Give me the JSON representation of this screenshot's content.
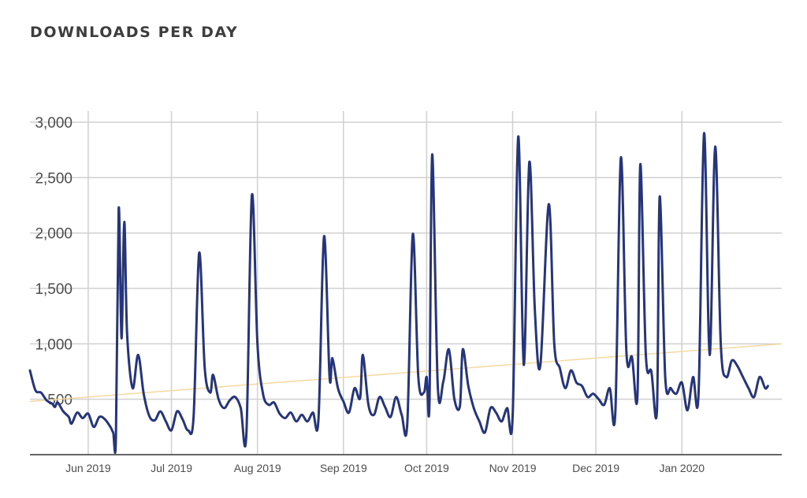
{
  "title": "DOWNLOADS PER DAY",
  "colors": {
    "series": "#26357a",
    "trend": "#f5d9a0",
    "grid": "#d0d0d0",
    "axis": "#333333"
  },
  "chart_data": {
    "type": "line",
    "title": "DOWNLOADS PER DAY",
    "xlabel": "",
    "ylabel": "",
    "ylim": [
      0,
      3100
    ],
    "y_ticks": [
      500,
      1000,
      1500,
      2000,
      2500,
      3000
    ],
    "y_tick_labels": [
      "500",
      "1,000",
      "1,500",
      "2,000",
      "2,500",
      "3,000"
    ],
    "x_range": [
      "2019-05-11",
      "2020-02-06"
    ],
    "x_ticks": [
      "2019-06-01",
      "2019-07-01",
      "2019-08-01",
      "2019-09-01",
      "2019-10-01",
      "2019-11-01",
      "2019-12-01",
      "2020-01-01"
    ],
    "x_tick_labels": [
      "Jun 2019",
      "Jul 2019",
      "Aug 2019",
      "Sep 2019",
      "Oct 2019",
      "Nov 2019",
      "Dec 2019",
      "Jan 2020"
    ],
    "grid": true,
    "series": [
      {
        "values": [
          [
            "2019-05-11",
            760
          ],
          [
            "2019-05-13",
            580
          ],
          [
            "2019-05-15",
            560
          ],
          [
            "2019-05-17",
            490
          ],
          [
            "2019-05-19",
            460
          ],
          [
            "2019-05-20",
            430
          ],
          [
            "2019-05-21",
            470
          ],
          [
            "2019-05-23",
            390
          ],
          [
            "2019-05-25",
            340
          ],
          [
            "2019-05-26",
            280
          ],
          [
            "2019-05-28",
            380
          ],
          [
            "2019-05-30",
            330
          ],
          [
            "2019-06-01",
            370
          ],
          [
            "2019-06-03",
            250
          ],
          [
            "2019-06-05",
            340
          ],
          [
            "2019-06-07",
            320
          ],
          [
            "2019-06-09",
            250
          ],
          [
            "2019-06-10",
            200
          ],
          [
            "2019-06-11",
            160
          ],
          [
            "2019-06-12",
            2220
          ],
          [
            "2019-06-13",
            1050
          ],
          [
            "2019-06-14",
            2100
          ],
          [
            "2019-06-15",
            1100
          ],
          [
            "2019-06-17",
            600
          ],
          [
            "2019-06-19",
            900
          ],
          [
            "2019-06-21",
            550
          ],
          [
            "2019-06-23",
            350
          ],
          [
            "2019-06-25",
            310
          ],
          [
            "2019-06-27",
            390
          ],
          [
            "2019-06-29",
            300
          ],
          [
            "2019-07-01",
            220
          ],
          [
            "2019-07-03",
            390
          ],
          [
            "2019-07-05",
            320
          ],
          [
            "2019-07-07",
            220
          ],
          [
            "2019-07-09",
            350
          ],
          [
            "2019-07-11",
            1820
          ],
          [
            "2019-07-13",
            780
          ],
          [
            "2019-07-15",
            560
          ],
          [
            "2019-07-16",
            720
          ],
          [
            "2019-07-18",
            500
          ],
          [
            "2019-07-20",
            420
          ],
          [
            "2019-07-22",
            490
          ],
          [
            "2019-07-24",
            520
          ],
          [
            "2019-07-26",
            420
          ],
          [
            "2019-07-28",
            180
          ],
          [
            "2019-07-30",
            2340
          ],
          [
            "2019-08-01",
            1000
          ],
          [
            "2019-08-03",
            550
          ],
          [
            "2019-08-05",
            450
          ],
          [
            "2019-08-07",
            470
          ],
          [
            "2019-08-09",
            370
          ],
          [
            "2019-08-11",
            330
          ],
          [
            "2019-08-13",
            380
          ],
          [
            "2019-08-15",
            300
          ],
          [
            "2019-08-17",
            360
          ],
          [
            "2019-08-19",
            300
          ],
          [
            "2019-08-21",
            380
          ],
          [
            "2019-08-23",
            320
          ],
          [
            "2019-08-25",
            1970
          ],
          [
            "2019-08-27",
            700
          ],
          [
            "2019-08-28",
            870
          ],
          [
            "2019-08-30",
            600
          ],
          [
            "2019-09-01",
            480
          ],
          [
            "2019-09-03",
            380
          ],
          [
            "2019-09-05",
            600
          ],
          [
            "2019-09-07",
            510
          ],
          [
            "2019-09-08",
            900
          ],
          [
            "2019-09-10",
            450
          ],
          [
            "2019-09-12",
            360
          ],
          [
            "2019-09-14",
            520
          ],
          [
            "2019-09-16",
            430
          ],
          [
            "2019-09-18",
            340
          ],
          [
            "2019-09-20",
            520
          ],
          [
            "2019-09-22",
            360
          ],
          [
            "2019-09-24",
            280
          ],
          [
            "2019-09-26",
            1990
          ],
          [
            "2019-09-28",
            700
          ],
          [
            "2019-09-30",
            560
          ],
          [
            "2019-10-01",
            700
          ],
          [
            "2019-10-02",
            450
          ],
          [
            "2019-10-03",
            2710
          ],
          [
            "2019-10-05",
            620
          ],
          [
            "2019-10-07",
            660
          ],
          [
            "2019-10-09",
            950
          ],
          [
            "2019-10-11",
            500
          ],
          [
            "2019-10-13",
            440
          ],
          [
            "2019-10-14",
            950
          ],
          [
            "2019-10-16",
            620
          ],
          [
            "2019-10-18",
            420
          ],
          [
            "2019-10-20",
            300
          ],
          [
            "2019-10-22",
            200
          ],
          [
            "2019-10-24",
            420
          ],
          [
            "2019-10-26",
            380
          ],
          [
            "2019-10-28",
            300
          ],
          [
            "2019-10-30",
            420
          ],
          [
            "2019-11-01",
            350
          ],
          [
            "2019-11-03",
            2870
          ],
          [
            "2019-11-05",
            810
          ],
          [
            "2019-11-07",
            2640
          ],
          [
            "2019-11-09",
            1300
          ],
          [
            "2019-11-11",
            810
          ],
          [
            "2019-11-14",
            2260
          ],
          [
            "2019-11-16",
            1000
          ],
          [
            "2019-11-18",
            780
          ],
          [
            "2019-11-20",
            600
          ],
          [
            "2019-11-22",
            760
          ],
          [
            "2019-11-24",
            650
          ],
          [
            "2019-11-26",
            620
          ],
          [
            "2019-11-28",
            520
          ],
          [
            "2019-11-30",
            550
          ],
          [
            "2019-12-02",
            500
          ],
          [
            "2019-12-04",
            450
          ],
          [
            "2019-12-06",
            600
          ],
          [
            "2019-12-08",
            380
          ],
          [
            "2019-12-10",
            2680
          ],
          [
            "2019-12-12",
            920
          ],
          [
            "2019-12-14",
            880
          ],
          [
            "2019-12-16",
            540
          ],
          [
            "2019-12-17",
            2620
          ],
          [
            "2019-12-19",
            900
          ],
          [
            "2019-12-21",
            750
          ],
          [
            "2019-12-23",
            400
          ],
          [
            "2019-12-24",
            2330
          ],
          [
            "2019-12-26",
            700
          ],
          [
            "2019-12-28",
            600
          ],
          [
            "2019-12-30",
            550
          ],
          [
            "2020-01-01",
            650
          ],
          [
            "2020-01-03",
            400
          ],
          [
            "2020-01-05",
            700
          ],
          [
            "2020-01-07",
            550
          ],
          [
            "2020-01-09",
            2900
          ],
          [
            "2020-01-11",
            900
          ],
          [
            "2020-01-13",
            2780
          ],
          [
            "2020-01-15",
            1000
          ],
          [
            "2020-01-17",
            700
          ],
          [
            "2020-01-19",
            850
          ],
          [
            "2020-01-21",
            800
          ],
          [
            "2020-01-23",
            700
          ],
          [
            "2020-01-25",
            600
          ],
          [
            "2020-01-27",
            520
          ],
          [
            "2020-01-29",
            700
          ],
          [
            "2020-01-31",
            600
          ],
          [
            "2020-02-01",
            620
          ]
        ]
      },
      {
        "values": [
          [
            "2019-05-11",
            480
          ],
          [
            "2020-02-06",
            1000
          ]
        ]
      }
    ]
  }
}
